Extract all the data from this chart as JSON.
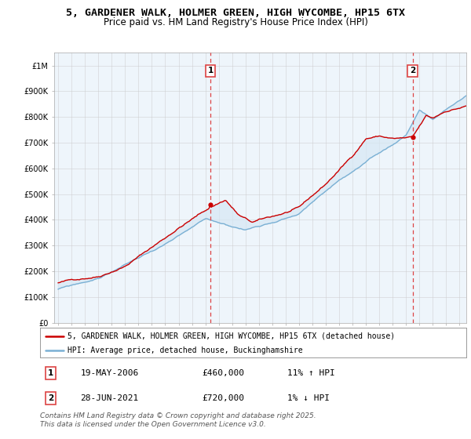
{
  "title": "5, GARDENER WALK, HOLMER GREEN, HIGH WYCOMBE, HP15 6TX",
  "subtitle": "Price paid vs. HM Land Registry's House Price Index (HPI)",
  "ylabel_ticks": [
    "£0",
    "£100K",
    "£200K",
    "£300K",
    "£400K",
    "£500K",
    "£600K",
    "£700K",
    "£800K",
    "£900K",
    "£1M"
  ],
  "ytick_values": [
    0,
    100000,
    200000,
    300000,
    400000,
    500000,
    600000,
    700000,
    800000,
    900000,
    1000000
  ],
  "ylim": [
    0,
    1050000
  ],
  "xlim_start": 1994.7,
  "xlim_end": 2025.5,
  "line1_color": "#cc0000",
  "line2_color": "#7ab0d4",
  "fill_color": "#d6e8f5",
  "grid_color": "#cccccc",
  "bg_color": "#ffffff",
  "chart_bg": "#eef5fb",
  "marker1_date": 2006.38,
  "marker1_value": 460000,
  "marker1_label": "1",
  "marker2_date": 2021.49,
  "marker2_value": 720000,
  "marker2_label": "2",
  "vline_color": "#dd4444",
  "legend_line1": "5, GARDENER WALK, HOLMER GREEN, HIGH WYCOMBE, HP15 6TX (detached house)",
  "legend_line2": "HPI: Average price, detached house, Buckinghamshire",
  "table_row1": [
    "1",
    "19-MAY-2006",
    "£460,000",
    "11% ↑ HPI"
  ],
  "table_row2": [
    "2",
    "28-JUN-2021",
    "£720,000",
    "1% ↓ HPI"
  ],
  "footer": "Contains HM Land Registry data © Crown copyright and database right 2025.\nThis data is licensed under the Open Government Licence v3.0.",
  "title_fontsize": 9.5,
  "subtitle_fontsize": 8.5,
  "tick_fontsize": 7,
  "legend_fontsize": 7,
  "table_fontsize": 8,
  "footer_fontsize": 6.5
}
